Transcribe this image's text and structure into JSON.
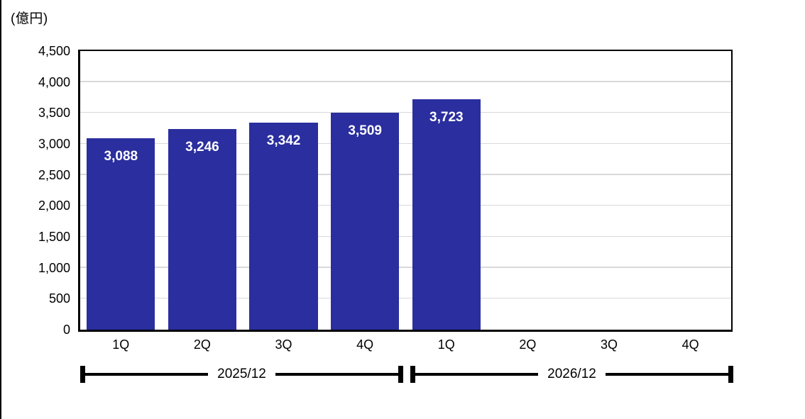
{
  "chart": {
    "unit_label": "(億円)"
  },
  "chart_data": {
    "type": "bar",
    "title": "",
    "unit": "億円",
    "categories": [
      "1Q",
      "2Q",
      "3Q",
      "4Q",
      "1Q",
      "2Q",
      "3Q",
      "4Q"
    ],
    "values": [
      3088,
      3246,
      3342,
      3509,
      3723,
      null,
      null,
      null
    ],
    "bar_labels": [
      "3,088",
      "3,246",
      "3,342",
      "3,509",
      "3,723",
      "",
      "",
      ""
    ],
    "ylim": [
      0,
      4500
    ],
    "ytick_step": 500,
    "yticks": [
      {
        "value": 0,
        "label": "0"
      },
      {
        "value": 500,
        "label": "500"
      },
      {
        "value": 1000,
        "label": "1,000"
      },
      {
        "value": 1500,
        "label": "1,500"
      },
      {
        "value": 2000,
        "label": "2,000"
      },
      {
        "value": 2500,
        "label": "2,500"
      },
      {
        "value": 3000,
        "label": "3,000"
      },
      {
        "value": 3500,
        "label": "3,500"
      },
      {
        "value": 4000,
        "label": "4,000"
      },
      {
        "value": 4500,
        "label": "4,500"
      }
    ],
    "grid": true,
    "legend": "none",
    "bar_color": "#2a2e9e",
    "gridline_color": "#d9d9d9",
    "value_label_color": "#ffffff",
    "groups": [
      {
        "label": "2025/12",
        "start": 0,
        "end": 3
      },
      {
        "label": "2026/12",
        "start": 4,
        "end": 7
      }
    ]
  }
}
